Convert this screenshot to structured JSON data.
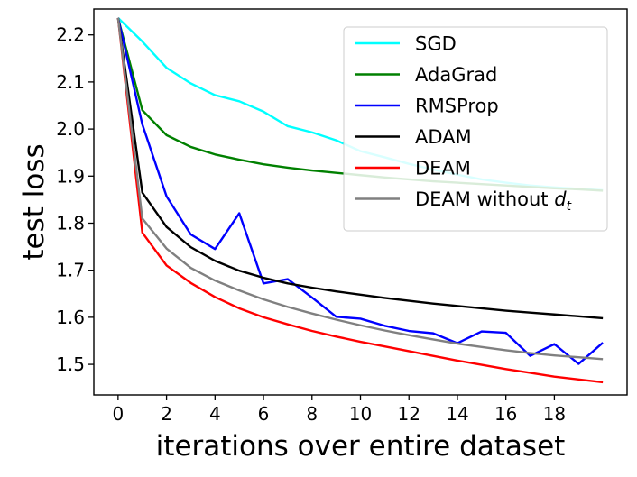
{
  "chart_data": {
    "type": "line",
    "title": "",
    "xlabel": "iterations over entire dataset",
    "ylabel": "test loss",
    "xlim": [
      -1,
      21
    ],
    "ylim": [
      1.435,
      2.255
    ],
    "xticks": [
      0,
      2,
      4,
      6,
      8,
      10,
      12,
      14,
      16,
      18
    ],
    "yticks": [
      1.5,
      1.6,
      1.7,
      1.8,
      1.9,
      2.0,
      2.1,
      2.2
    ],
    "grid": false,
    "legend_position": "top-right",
    "x": [
      0,
      1,
      2,
      3,
      4,
      5,
      6,
      7,
      8,
      9,
      10,
      11,
      12,
      13,
      14,
      15,
      16,
      17,
      18,
      19,
      20
    ],
    "series": [
      {
        "name": "SGD",
        "color": "#00ffff",
        "values": [
          2.236,
          2.186,
          2.13,
          2.097,
          2.072,
          2.059,
          2.037,
          2.006,
          1.993,
          1.976,
          1.953,
          1.94,
          1.926,
          1.914,
          1.903,
          1.893,
          1.886,
          1.88,
          1.876,
          1.873,
          1.87
        ]
      },
      {
        "name": "AdaGrad",
        "color": "#008000",
        "values": [
          2.236,
          2.04,
          1.987,
          1.962,
          1.946,
          1.935,
          1.925,
          1.918,
          1.912,
          1.907,
          1.902,
          1.897,
          1.893,
          1.889,
          1.886,
          1.883,
          1.88,
          1.877,
          1.874,
          1.872,
          1.869
        ]
      },
      {
        "name": "RMSProp",
        "color": "#0000ff",
        "values": [
          2.236,
          2.01,
          1.857,
          1.776,
          1.745,
          1.821,
          1.672,
          1.681,
          1.642,
          1.601,
          1.597,
          1.582,
          1.571,
          1.566,
          1.545,
          1.57,
          1.567,
          1.518,
          1.543,
          1.501,
          1.546
        ]
      },
      {
        "name": "ADAM",
        "color": "#000000",
        "values": [
          2.236,
          1.865,
          1.792,
          1.749,
          1.72,
          1.699,
          1.684,
          1.672,
          1.663,
          1.655,
          1.648,
          1.641,
          1.635,
          1.629,
          1.624,
          1.619,
          1.614,
          1.61,
          1.606,
          1.602,
          1.598
        ]
      },
      {
        "name": "DEAM",
        "color": "#ff0000",
        "values": [
          2.236,
          1.78,
          1.71,
          1.673,
          1.643,
          1.619,
          1.6,
          1.585,
          1.571,
          1.559,
          1.548,
          1.538,
          1.528,
          1.518,
          1.508,
          1.499,
          1.49,
          1.482,
          1.474,
          1.468,
          1.462
        ]
      },
      {
        "name": "DEAM without d_t",
        "color": "#808080",
        "values": [
          2.236,
          1.81,
          1.746,
          1.705,
          1.678,
          1.657,
          1.638,
          1.622,
          1.608,
          1.595,
          1.583,
          1.572,
          1.562,
          1.553,
          1.544,
          1.537,
          1.53,
          1.524,
          1.519,
          1.515,
          1.511
        ]
      }
    ],
    "legend": [
      {
        "name": "SGD",
        "label": "SGD",
        "sub": ""
      },
      {
        "name": "AdaGrad",
        "label": "AdaGrad",
        "sub": ""
      },
      {
        "name": "RMSProp",
        "label": "RMSProp",
        "sub": ""
      },
      {
        "name": "ADAM",
        "label": "ADAM",
        "sub": ""
      },
      {
        "name": "DEAM",
        "label": "DEAM",
        "sub": ""
      },
      {
        "name": "DEAM without d_t",
        "label": "DEAM without ",
        "math": "d",
        "sub": "t"
      }
    ]
  }
}
